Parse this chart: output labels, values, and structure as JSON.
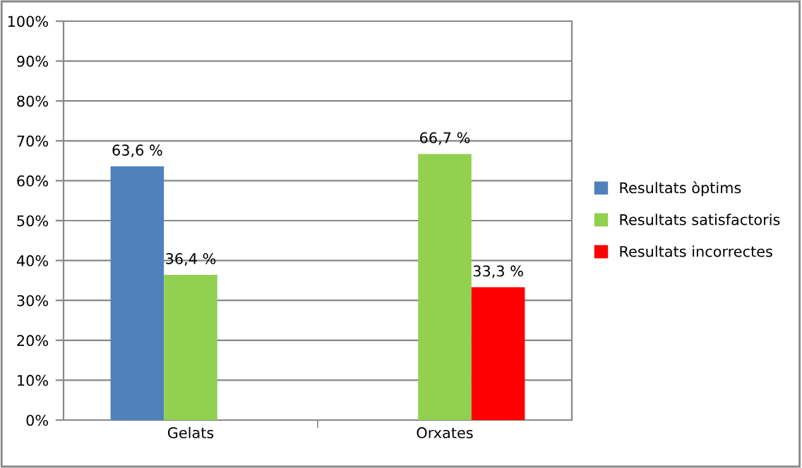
{
  "chart_data": {
    "type": "bar",
    "categories": [
      "Gelats",
      "Orxates"
    ],
    "series": [
      {
        "name": "Resultats òptims",
        "color": "#4f81bd",
        "values": [
          63.6,
          null
        ],
        "value_labels": [
          "63,6 %",
          null
        ]
      },
      {
        "name": "Resultats satisfactoris",
        "color": "#92d050",
        "values": [
          36.4,
          66.7
        ],
        "value_labels": [
          "36,4 %",
          "66,7 %"
        ]
      },
      {
        "name": "Resultats incorrectes",
        "color": "#ff0000",
        "values": [
          null,
          33.3
        ],
        "value_labels": [
          null,
          "33,3 %"
        ]
      }
    ],
    "ylim": [
      0,
      100
    ],
    "yticks": [
      {
        "value": 0,
        "label": "0%"
      },
      {
        "value": 10,
        "label": "10%"
      },
      {
        "value": 20,
        "label": "20%"
      },
      {
        "value": 30,
        "label": "30%"
      },
      {
        "value": 40,
        "label": "40%"
      },
      {
        "value": 50,
        "label": "50%"
      },
      {
        "value": 60,
        "label": "60%"
      },
      {
        "value": 70,
        "label": "70%"
      },
      {
        "value": 80,
        "label": "80%"
      },
      {
        "value": 90,
        "label": "90%"
      },
      {
        "value": 100,
        "label": "100%"
      }
    ],
    "grid": "y",
    "legend": "right"
  }
}
